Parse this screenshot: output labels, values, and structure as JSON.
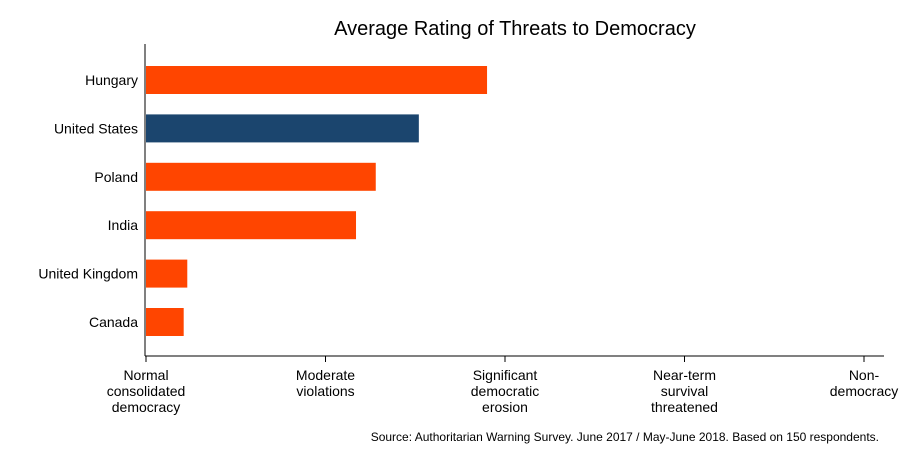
{
  "chart_data": {
    "type": "bar",
    "orientation": "horizontal",
    "title": "Average Rating of Threats to Democracy",
    "categories": [
      "Hungary",
      "United States",
      "Poland",
      "India",
      "United Kingdom",
      "Canada"
    ],
    "values": [
      1.9,
      1.52,
      1.28,
      1.17,
      0.23,
      0.21
    ],
    "xlim": [
      0,
      4
    ],
    "xticks": [
      {
        "value": 0,
        "lines": [
          "Normal",
          "consolidated",
          "democracy"
        ]
      },
      {
        "value": 1,
        "lines": [
          "Moderate",
          "violations"
        ]
      },
      {
        "value": 2,
        "lines": [
          "Significant",
          "democratic",
          "erosion"
        ]
      },
      {
        "value": 3,
        "lines": [
          "Near-term",
          "survival",
          "threatened"
        ]
      },
      {
        "value": 4,
        "lines": [
          "Non-",
          "democracy"
        ]
      }
    ],
    "highlight_category": "United States",
    "colors": {
      "default": "#FF4500",
      "highlight": "#1B456E"
    },
    "source": "Source: Authoritarian Warning Survey. June 2017 / May-June 2018. Based on 150 respondents."
  }
}
